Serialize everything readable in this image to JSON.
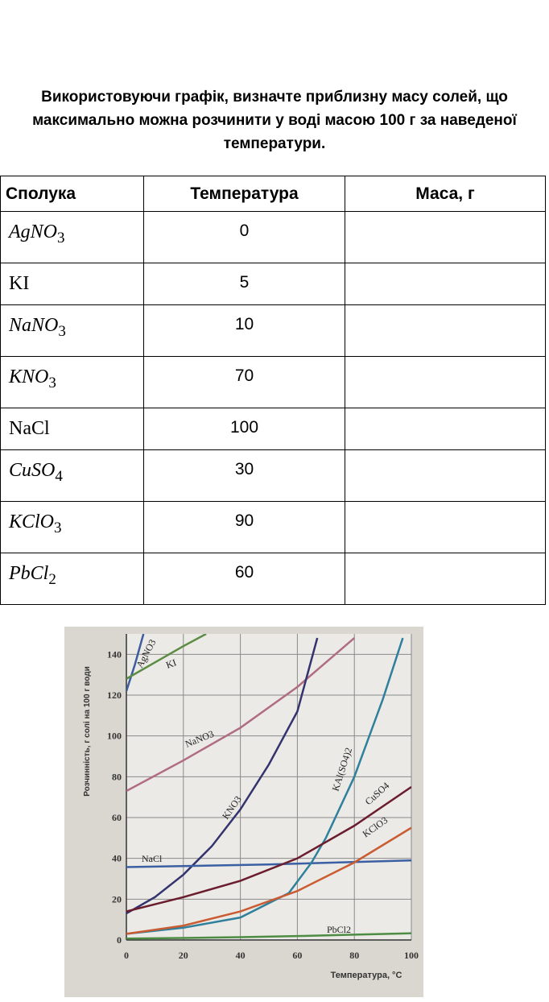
{
  "question": "Використовуючи графік, визначте приблизну масу солей, що максимально можна розчинити у воді масою 100 г за наведеної температури.",
  "table": {
    "headers": [
      "Сполука",
      "Температура",
      "Маса, г"
    ],
    "rows": [
      {
        "compound": "AgNO",
        "sub": "3",
        "temperature": 0
      },
      {
        "compound": "KI",
        "temperature": 5
      },
      {
        "compound": "NaNO",
        "sub": "3",
        "temperature": 10
      },
      {
        "compound": "KNO",
        "sub": "3",
        "temperature": 70
      },
      {
        "compound": "NaCl",
        "temperature": 100
      },
      {
        "compound": "CuSO",
        "sub": "4",
        "temperature": 30
      },
      {
        "compound": "KClO",
        "sub": "3",
        "temperature": 90
      },
      {
        "compound": "PbCl",
        "sub": "2",
        "temperature": 60
      }
    ]
  },
  "chart_data": {
    "type": "line",
    "ylabel": "Розчинність, г солі на 100 г води",
    "xlabel": "Температура, °С",
    "xlim": [
      0,
      100
    ],
    "xticks": [
      0,
      20,
      40,
      60,
      80,
      100
    ],
    "ylim": [
      0,
      150
    ],
    "yticks": [
      0,
      20,
      40,
      60,
      80,
      100,
      120,
      140
    ],
    "grid": true,
    "series": [
      {
        "name": "AgNO3",
        "color": "#3d5c9e",
        "x": [
          0,
          3,
          6
        ],
        "values": [
          122,
          135,
          150
        ]
      },
      {
        "name": "KI",
        "color": "#5b8c43",
        "x": [
          0,
          10,
          20,
          28
        ],
        "values": [
          128,
          136,
          144,
          150
        ]
      },
      {
        "name": "NaNO3",
        "color": "#b06c82",
        "x": [
          0,
          20,
          40,
          60,
          80
        ],
        "values": [
          73,
          88,
          104,
          124,
          148
        ]
      },
      {
        "name": "KNO3",
        "color": "#33336e",
        "x": [
          0,
          10,
          20,
          30,
          40,
          50,
          60,
          67
        ],
        "values": [
          13,
          21,
          32,
          46,
          64,
          86,
          112,
          148
        ]
      },
      {
        "name": "NaCl",
        "color": "#3a5fa3",
        "x": [
          0,
          50,
          100
        ],
        "values": [
          35.7,
          37,
          39
        ]
      },
      {
        "name": "KAl(SO4)2",
        "color": "#2f809c",
        "x": [
          0,
          20,
          40,
          57,
          65,
          70,
          80,
          90,
          97
        ],
        "values": [
          3,
          6,
          11,
          23,
          38,
          50,
          80,
          118,
          148
        ]
      },
      {
        "name": "CuSO4",
        "color": "#6b1d2e",
        "x": [
          0,
          20,
          40,
          60,
          80,
          100
        ],
        "values": [
          14,
          21,
          29,
          40,
          56,
          75
        ]
      },
      {
        "name": "KClO3",
        "color": "#c95c33",
        "x": [
          0,
          20,
          40,
          60,
          80,
          100
        ],
        "values": [
          3,
          7,
          14,
          24,
          38,
          55
        ]
      },
      {
        "name": "PbCl2",
        "color": "#4c8c43",
        "x": [
          0,
          20,
          40,
          60,
          80,
          100
        ],
        "values": [
          0.7,
          1,
          1.4,
          1.9,
          2.6,
          3.3
        ]
      }
    ]
  }
}
